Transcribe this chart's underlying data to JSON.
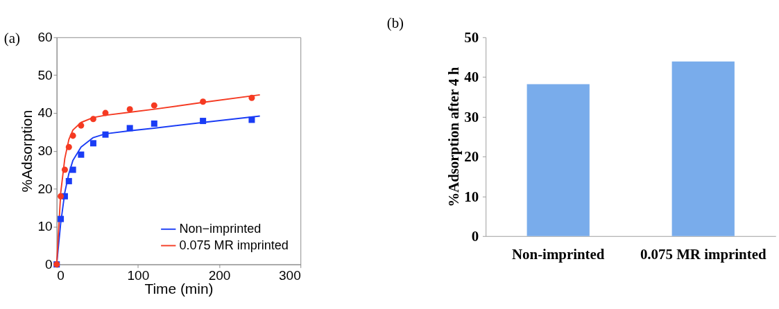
{
  "chart_data": [
    {
      "type": "scatter",
      "xlabel": "Time (min)",
      "ylabel": "%Adsorption",
      "xlim": [
        0,
        300
      ],
      "ylim": [
        0,
        60
      ],
      "xticks": [
        0,
        100,
        200,
        300
      ],
      "yticks": [
        0,
        10,
        20,
        30,
        40,
        50,
        60
      ],
      "legend": "bottom right",
      "grid": false,
      "annotations": [
        "(a)"
      ],
      "series": [
        {
          "type": "line",
          "name": "Non−imprinted",
          "color": "#1a3cf5",
          "x": [
            0,
            5,
            10,
            15,
            20,
            30,
            45,
            60,
            90,
            120,
            180,
            250
          ],
          "values": [
            0,
            11,
            19,
            24,
            27.5,
            31,
            33.5,
            34.5,
            35.3,
            36,
            37.5,
            39.2
          ]
        },
        {
          "type": "line",
          "name": "0.075 MR imprinted",
          "color": "#f53a22",
          "x": [
            0,
            5,
            10,
            15,
            20,
            30,
            45,
            60,
            90,
            120,
            180,
            250
          ],
          "values": [
            0,
            19,
            28,
            33,
            35.5,
            37.5,
            38.8,
            39.4,
            40.2,
            41,
            42.8,
            44.8
          ]
        },
        {
          "type": "scatter",
          "marker": "square",
          "color": "#1a3cf5",
          "x": [
            0,
            5,
            10,
            15,
            20,
            30,
            45,
            60,
            90,
            120,
            180,
            240
          ],
          "values": [
            0,
            12,
            18,
            22,
            25,
            29,
            32,
            34.3,
            36,
            37.2,
            37.9,
            38.2
          ]
        },
        {
          "type": "scatter",
          "marker": "circle",
          "color": "#f53a22",
          "x": [
            0,
            5,
            10,
            15,
            20,
            30,
            45,
            60,
            90,
            120,
            180,
            240
          ],
          "values": [
            0,
            18,
            25,
            31,
            34,
            36.7,
            38.4,
            40,
            41,
            42,
            43,
            44
          ]
        }
      ]
    },
    {
      "type": "bar",
      "ylabel": "%Adsorption after 4 h",
      "categories": [
        "Non-imprinted",
        "0.075 MR imprinted"
      ],
      "values": [
        38.2,
        43.9
      ],
      "color": "#79aceb",
      "ylim": [
        0,
        50
      ],
      "yticks": [
        0,
        10,
        20,
        30,
        40,
        50
      ],
      "grid": false,
      "annotations": [
        "(b)"
      ]
    }
  ]
}
